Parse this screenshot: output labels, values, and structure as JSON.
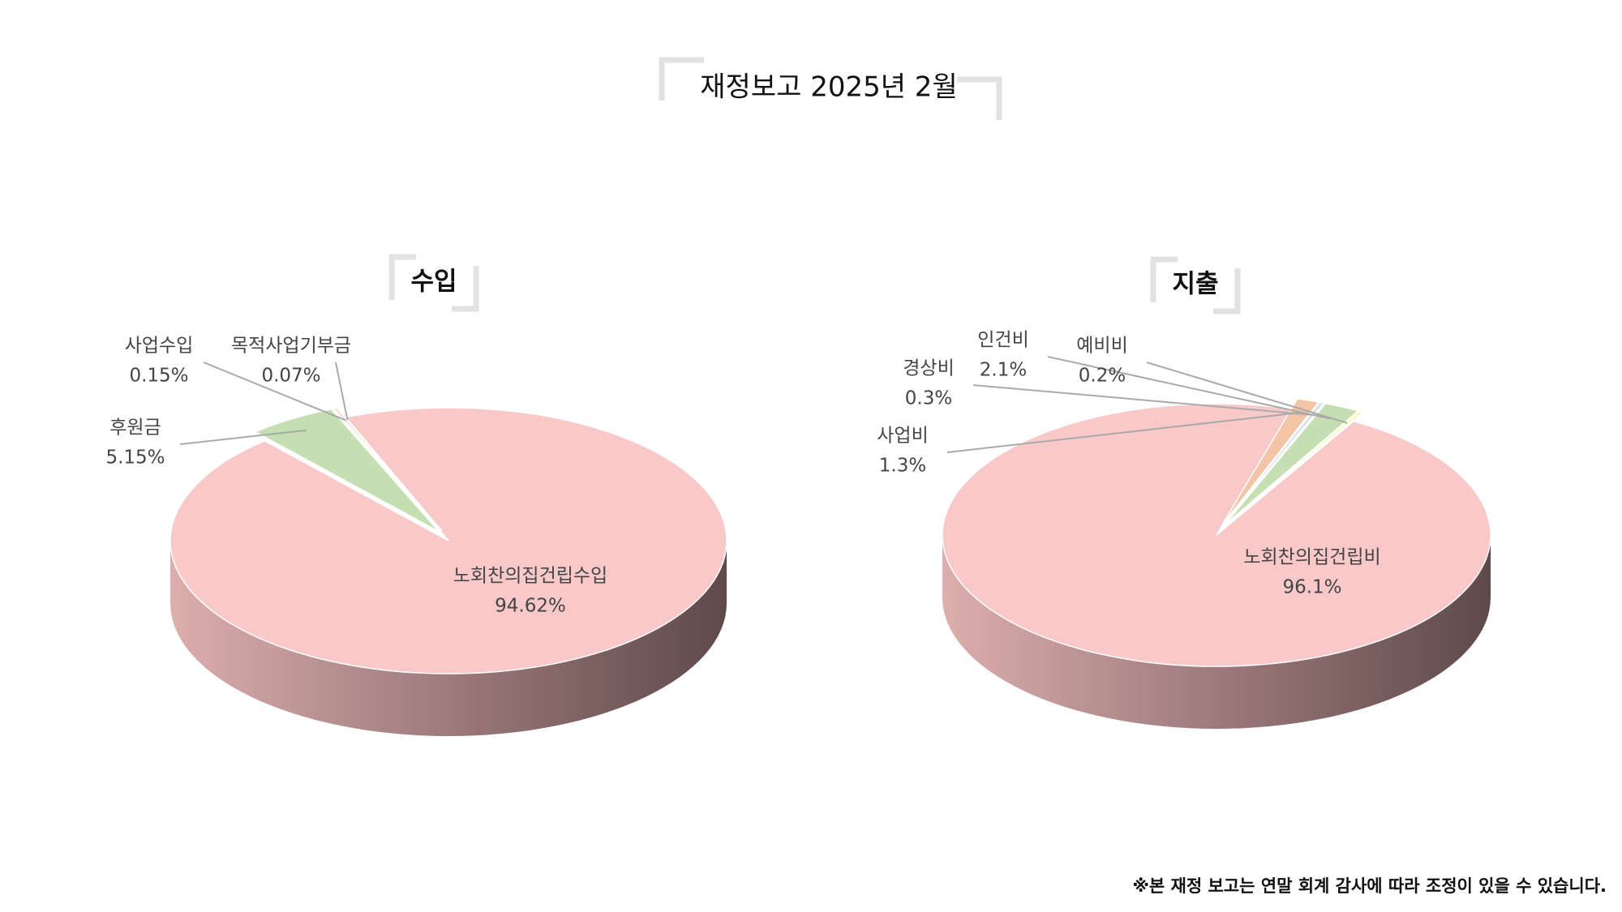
{
  "title": "재정보고 2025년 2월",
  "footnote": "※본 재정 보고는 연말 회계 감사에 따라 조정이 있을 수 있습니다.",
  "chart_data": [
    {
      "type": "pie",
      "title": "수입",
      "categories": [
        "노회찬의집건립수입",
        "후원금",
        "사업수입",
        "목적사업기부금"
      ],
      "values": [
        94.62,
        5.15,
        0.15,
        0.07
      ],
      "value_labels": [
        "94.62%",
        "5.15%",
        "0.15%",
        "0.07%"
      ],
      "colors": [
        "#f9c8c9",
        "#c5dfb3",
        "#f4c4a6",
        "#dde3ec"
      ]
    },
    {
      "type": "pie",
      "title": "지출",
      "categories": [
        "노회찬의집건립비",
        "사업비",
        "경상비",
        "인건비",
        "예비비"
      ],
      "values": [
        96.1,
        1.3,
        0.3,
        2.1,
        0.2
      ],
      "value_labels": [
        "96.1%",
        "1.3%",
        "0.3%",
        "2.1%",
        "0.2%"
      ],
      "colors": [
        "#f9c8c9",
        "#f4c4a6",
        "#dde3ec",
        "#c5dfb3",
        "#fdf49a"
      ]
    }
  ]
}
